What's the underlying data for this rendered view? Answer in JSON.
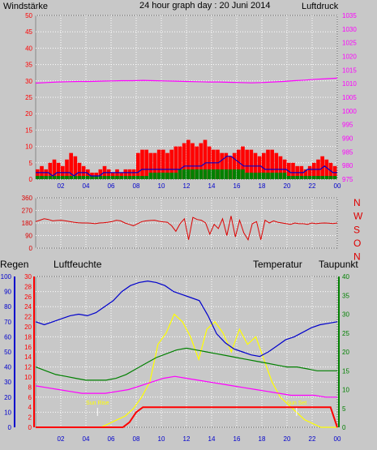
{
  "header": {
    "title": "24 hour graph day : 20 Juni 2014",
    "left_label": "Windstärke",
    "right_label": "Luftdruck"
  },
  "colors": {
    "background": "#c8c8c8",
    "wind": "#ff0000",
    "gust": "#0000cc",
    "calm": "#008000",
    "pressure": "#ff00ff",
    "direction": "#dd0000",
    "grid": "#ffffff",
    "rain": "#ff0000",
    "humidity": "#0000cc",
    "temperature": "#008000",
    "dewpoint": "#ff00ff",
    "solar": "#ffff00",
    "sun_label": "#ffff00"
  },
  "chart_data": [
    {
      "type": "line",
      "id": "wind-pressure",
      "x_ticks": [
        "02",
        "04",
        "06",
        "08",
        "10",
        "12",
        "14",
        "16",
        "18",
        "20",
        "22",
        "00"
      ],
      "left_axis": {
        "label": "Windstärke",
        "ticks": [
          0,
          5,
          10,
          15,
          20,
          25,
          30,
          35,
          40,
          45,
          50
        ],
        "ylim": [
          0,
          50
        ]
      },
      "right_axis": {
        "label": "Luftdruck",
        "ticks": [
          975,
          980,
          985,
          990,
          995,
          1000,
          1005,
          1010,
          1015,
          1020,
          1025,
          1030,
          1035
        ],
        "ylim": [
          975,
          1035
        ]
      },
      "series": [
        {
          "key": "wind",
          "values": [
            3,
            4,
            3,
            5,
            6,
            5,
            4,
            6,
            8,
            7,
            5,
            4,
            3,
            2,
            2,
            3,
            4,
            3,
            2,
            3,
            2,
            3,
            3,
            3,
            8,
            9,
            9,
            8,
            8,
            9,
            9,
            8,
            9,
            10,
            10,
            11,
            12,
            11,
            10,
            11,
            12,
            10,
            9,
            9,
            8,
            8,
            7,
            8,
            9,
            10,
            9,
            9,
            8,
            7,
            8,
            9,
            9,
            8,
            7,
            6,
            5,
            5,
            4,
            4,
            3,
            4,
            5,
            6,
            7,
            6,
            5,
            4
          ]
        },
        {
          "key": "gust",
          "values": [
            2,
            2,
            2,
            2,
            1,
            2,
            2,
            2,
            2,
            1,
            2,
            2,
            2,
            1,
            1,
            1,
            2,
            2,
            2,
            2,
            2,
            2,
            2,
            2,
            2,
            3,
            3,
            3,
            3,
            3,
            3,
            3,
            3,
            3,
            3,
            4,
            4,
            4,
            4,
            4,
            5,
            5,
            5,
            5,
            6,
            7,
            7,
            6,
            5,
            4,
            4,
            4,
            4,
            4,
            3,
            3,
            3,
            3,
            3,
            3,
            2,
            2,
            2,
            2,
            3,
            3,
            3,
            3,
            4,
            3,
            2,
            2
          ]
        },
        {
          "key": "calm",
          "values": [
            1,
            1,
            1,
            1,
            1,
            1,
            1,
            1,
            1,
            1,
            1,
            1,
            1,
            1,
            1,
            1,
            1,
            1,
            1,
            1,
            1,
            1,
            1,
            1,
            1,
            1,
            1,
            2,
            2,
            2,
            2,
            2,
            2,
            2,
            3,
            3,
            3,
            3,
            3,
            3,
            3,
            3,
            3,
            3,
            3,
            3,
            3,
            3,
            3,
            3,
            2,
            2,
            2,
            2,
            2,
            2,
            2,
            2,
            2,
            2,
            1,
            1,
            1,
            1,
            1,
            1,
            1,
            1,
            1,
            1,
            1,
            1
          ]
        },
        {
          "key": "pressure",
          "values": [
            1010.2,
            1010.4,
            1010.6,
            1010.7,
            1010.8,
            1010.8,
            1010.9,
            1011.0,
            1011.1,
            1011.1,
            1011.2,
            1011.1,
            1011.0,
            1010.9,
            1010.8,
            1010.7,
            1010.6,
            1010.6,
            1010.5,
            1010.4,
            1010.3,
            1010.4,
            1010.6,
            1010.8,
            1011.1,
            1011.3,
            1011.6,
            1011.8,
            1012.0
          ]
        }
      ]
    },
    {
      "type": "line",
      "id": "wind-direction",
      "x_ticks": [
        "02",
        "04",
        "06",
        "08",
        "10",
        "12",
        "14",
        "16",
        "18",
        "20",
        "22",
        "00"
      ],
      "left_axis": {
        "ticks": [
          0,
          90,
          180,
          270,
          360
        ],
        "ylim": [
          0,
          360
        ]
      },
      "right_axis": {
        "ticks": [
          "N",
          "W",
          "S",
          "O",
          "N"
        ]
      },
      "values": [
        190,
        200,
        210,
        205,
        195,
        198,
        200,
        195,
        190,
        185,
        182,
        180,
        180,
        178,
        175,
        180,
        182,
        185,
        190,
        200,
        195,
        180,
        170,
        160,
        175,
        190,
        195,
        198,
        200,
        192,
        188,
        185,
        160,
        120,
        175,
        210,
        60,
        220,
        205,
        200,
        180,
        100,
        170,
        140,
        210,
        90,
        230,
        80,
        200,
        110,
        60,
        175,
        190,
        60,
        200,
        180,
        195,
        185,
        180,
        175,
        170,
        180,
        175,
        175,
        170,
        180,
        175,
        178,
        180,
        178,
        176,
        180
      ]
    },
    {
      "type": "line",
      "id": "rain-humidity-temp",
      "x_ticks": [
        "02",
        "04",
        "06",
        "08",
        "10",
        "12",
        "14",
        "16",
        "18",
        "20",
        "22",
        "00"
      ],
      "left_axis_rain": {
        "label": "Regen",
        "ticks": [
          0,
          2,
          4,
          6,
          8,
          10,
          12,
          14,
          16,
          18,
          20,
          22,
          24,
          26,
          28,
          30
        ]
      },
      "left_axis_humidity": {
        "label": "Luftfeuchte",
        "ticks": [
          0,
          10,
          20,
          30,
          40,
          50,
          60,
          70,
          80,
          90,
          100
        ]
      },
      "right_axis_temp": {
        "label": "Temperatur",
        "ticks": [
          0,
          5,
          10,
          15,
          20,
          25,
          30,
          35,
          40
        ]
      },
      "right_label_dew": "Taupunkt",
      "sun_rise": "Sun Rise",
      "sun_set": "Sun Set",
      "series": [
        {
          "key": "humidity",
          "values": [
            70,
            68,
            70,
            72,
            74,
            75,
            74,
            76,
            80,
            84,
            90,
            94,
            96,
            97,
            96,
            94,
            90,
            88,
            86,
            84,
            74,
            62,
            56,
            52,
            50,
            48,
            47,
            50,
            54,
            58,
            60,
            63,
            66,
            68,
            69,
            70
          ]
        },
        {
          "key": "temperature",
          "values": [
            16,
            15,
            14,
            13.5,
            13,
            12.5,
            12.5,
            12.5,
            13,
            14,
            15.5,
            17,
            18.5,
            19.5,
            20.5,
            21,
            20.5,
            20,
            19.5,
            19,
            18.5,
            18,
            17.5,
            17,
            16.5,
            16,
            16,
            15.5,
            15,
            15,
            15
          ]
        },
        {
          "key": "dewpoint",
          "values": [
            11,
            10.5,
            10,
            9.5,
            9,
            9,
            9,
            9.5,
            10,
            11,
            12,
            13,
            13.5,
            13,
            12.5,
            12,
            11.5,
            11,
            10.5,
            10,
            9.5,
            9,
            8.5,
            8.5,
            8.5,
            8,
            8
          ]
        },
        {
          "key": "rain",
          "values": [
            0,
            0,
            0,
            0,
            0,
            0,
            0,
            0,
            0,
            0,
            0,
            0,
            0,
            0,
            1,
            3,
            4,
            4,
            4,
            4,
            4,
            4,
            4,
            4,
            4,
            4,
            4,
            4,
            4,
            4,
            4,
            4,
            4,
            4,
            4,
            4,
            4,
            4,
            4,
            4,
            4,
            4,
            4,
            4,
            4,
            0
          ]
        },
        {
          "key": "solar",
          "values": [
            0,
            0,
            0,
            0,
            0,
            0,
            0,
            0,
            0,
            1,
            2,
            3,
            5,
            8,
            12,
            22,
            25,
            30,
            28,
            24,
            18,
            26,
            28,
            25,
            20,
            26,
            22,
            24,
            18,
            12,
            8,
            6,
            4,
            2,
            1,
            0,
            0,
            0
          ]
        }
      ]
    }
  ]
}
